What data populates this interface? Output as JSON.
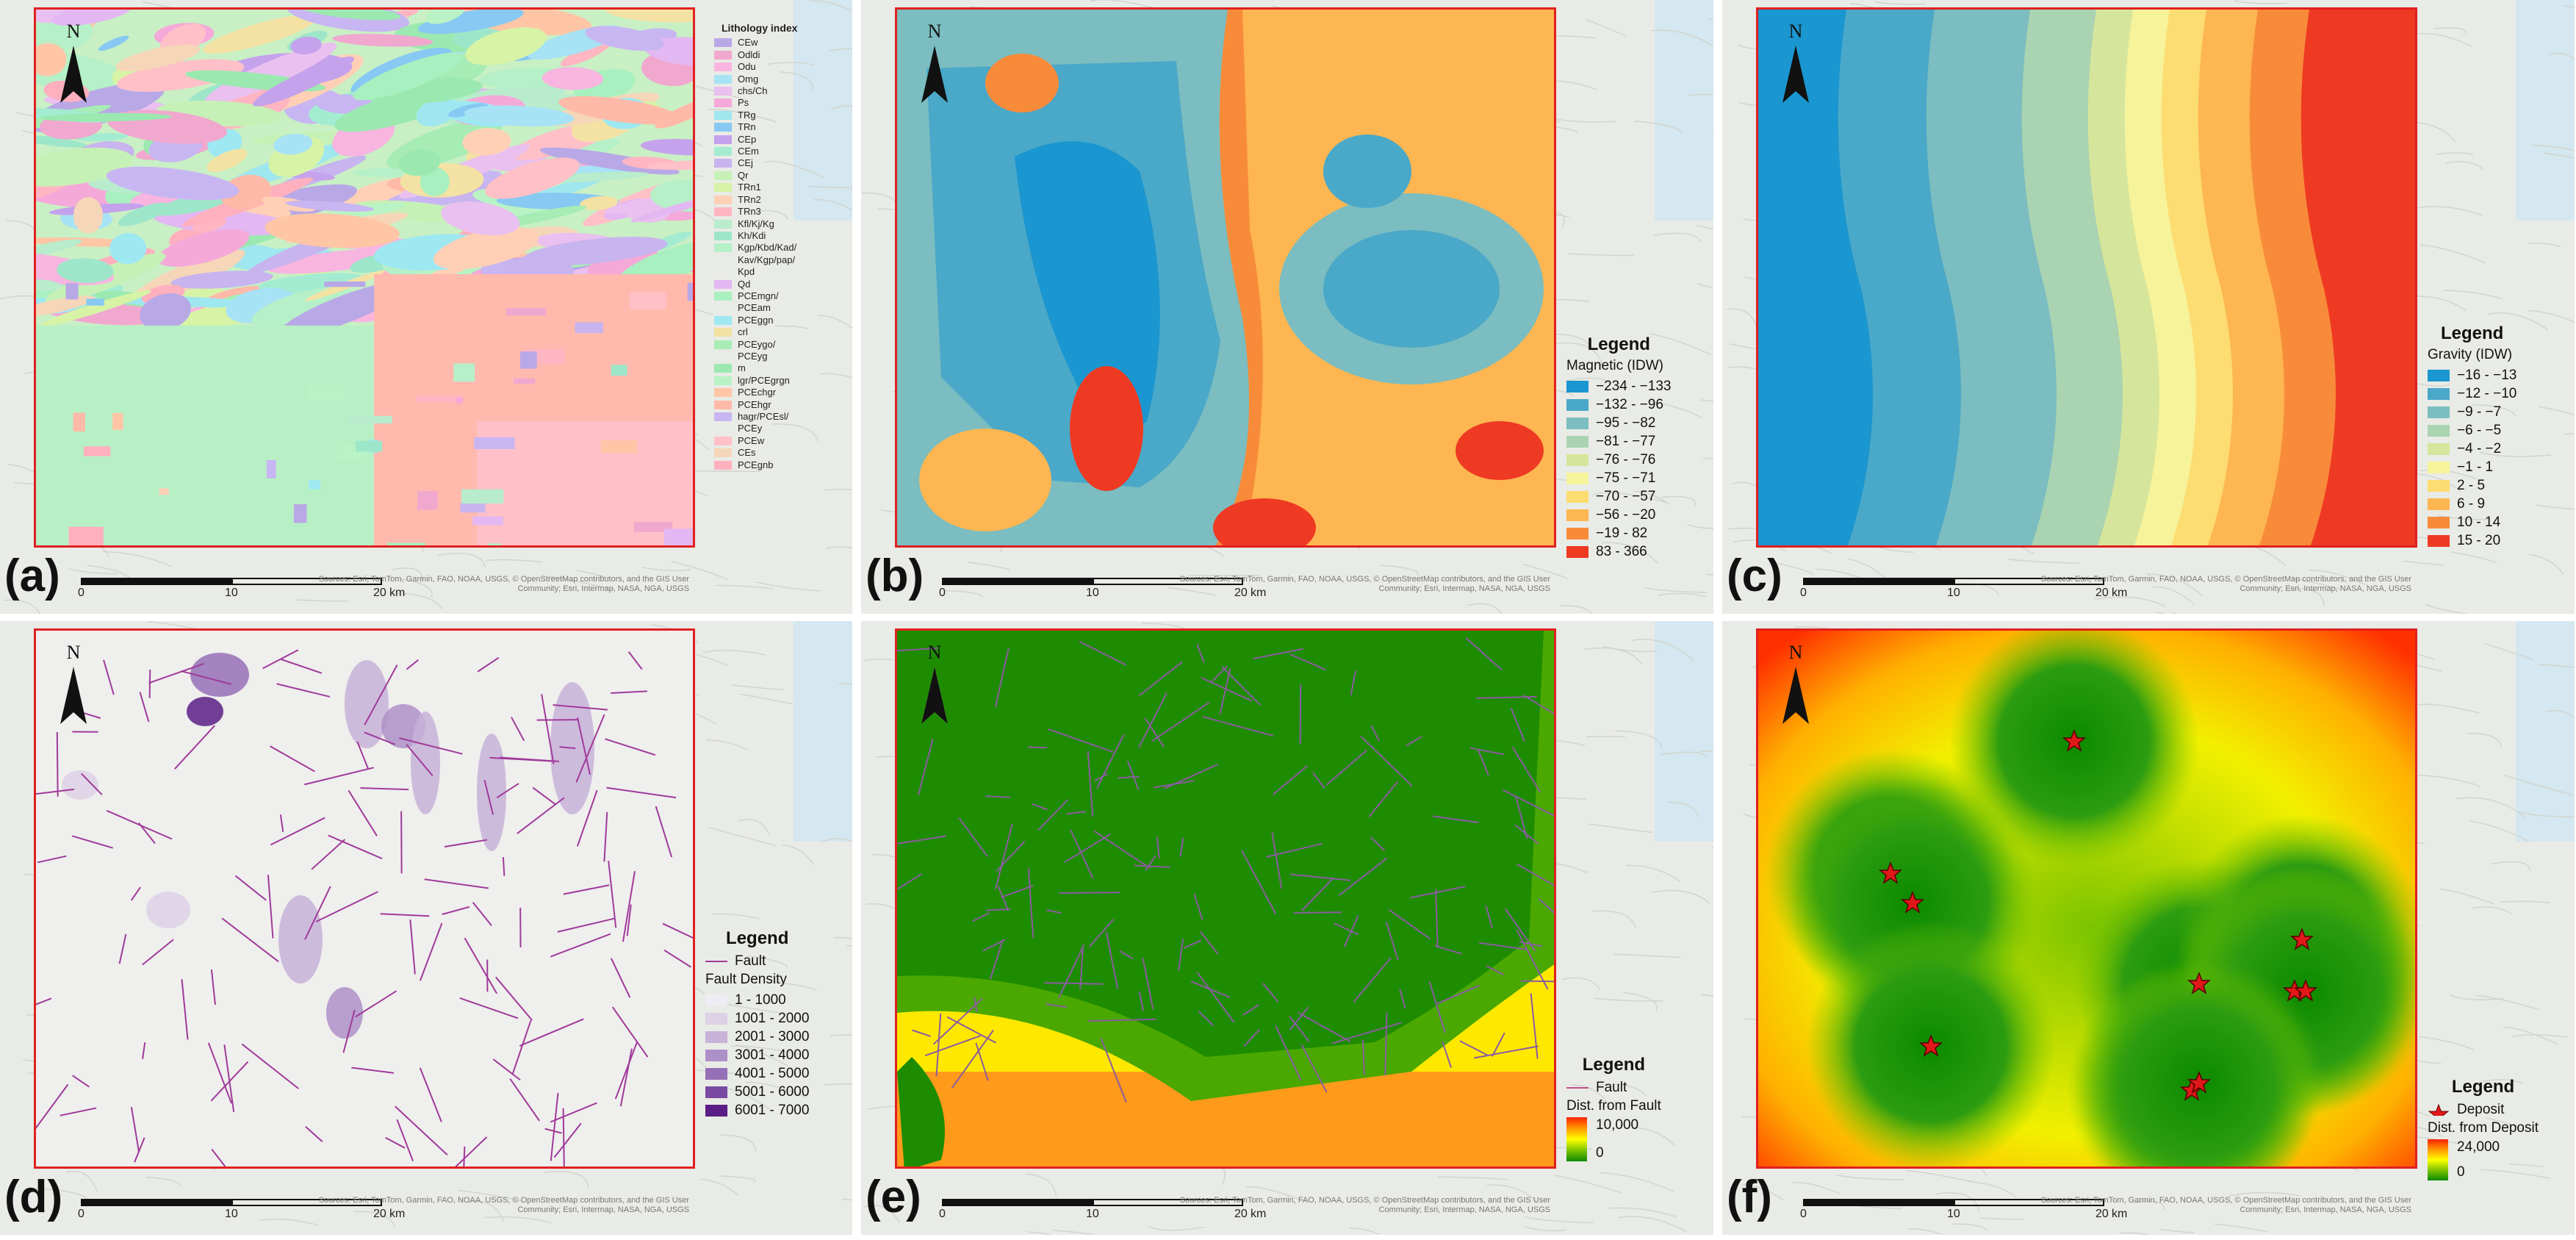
{
  "attribution": "Sources: Esri, TomTom, Garmin, FAO, NOAA, USGS, © OpenStreetMap contributors, and the GIS User Community; Esri, Intermap, NASA, NGA, USGS",
  "scalebar": {
    "ticks": [
      "0",
      "10",
      "20"
    ],
    "unit": "km"
  },
  "north_label": "N",
  "panels": [
    {
      "label": "(a)",
      "legend_title": "Lithology index",
      "classes": [
        {
          "label": "CEw",
          "color": "#b9a8e6"
        },
        {
          "label": "Odldi",
          "color": "#f0a8cf"
        },
        {
          "label": "Odu",
          "color": "#f7b5e0"
        },
        {
          "label": "Omg",
          "color": "#a8e2f5"
        },
        {
          "label": "chs/Ch",
          "color": "#e9c0ef"
        },
        {
          "label": "Ps",
          "color": "#f5a9d8"
        },
        {
          "label": "TRg",
          "color": "#9fe6ee"
        },
        {
          "label": "TRn",
          "color": "#87c9f2"
        },
        {
          "label": "CEp",
          "color": "#c5a2ec"
        },
        {
          "label": "CEm",
          "color": "#a3ecd2"
        },
        {
          "label": "CEj",
          "color": "#c8b4ee"
        },
        {
          "label": "Qr",
          "color": "#c6f1b6"
        },
        {
          "label": "TRn1",
          "color": "#d7f3a6"
        },
        {
          "label": "TRn2",
          "color": "#ffd0b6"
        },
        {
          "label": "TRn3",
          "color": "#ffb6c2"
        },
        {
          "label": "Kfl/Kj/Kg",
          "color": "#b8eccc"
        },
        {
          "label": "Kh/Kdi",
          "color": "#9ee6c9"
        },
        {
          "label": "Kgp/Kbd/Kad/\nKav/Kgp/pap/\nKpd",
          "color": "#b6f0c8"
        },
        {
          "label": "Qd",
          "color": "#e3b8f2"
        },
        {
          "label": "PCEmgn/\nPCEam",
          "color": "#a8f0c0"
        },
        {
          "label": "PCEggn",
          "color": "#9ee8f2"
        },
        {
          "label": "crl",
          "color": "#f3e2a4"
        },
        {
          "label": "PCEygo/\nPCEyg",
          "color": "#a6ecb4"
        },
        {
          "label": "m",
          "color": "#9be9b0"
        },
        {
          "label": "lgr/PCEgrgn",
          "color": "#b9f3c5"
        },
        {
          "label": "PCEchgr",
          "color": "#ffc6a6"
        },
        {
          "label": "PCEhgr",
          "color": "#ffb9a8"
        },
        {
          "label": "hagr/PCEsl/\nPCEy",
          "color": "#c8b6f2"
        },
        {
          "label": "PCEw",
          "color": "#ffc0c8"
        },
        {
          "label": "CEs",
          "color": "#f5d6b8"
        },
        {
          "label": "PCEgnb",
          "color": "#ffb0be"
        }
      ]
    },
    {
      "label": "(b)",
      "legend_title": "Legend",
      "layer_title": "Magnetic (IDW)",
      "classes": [
        {
          "label": "−234 - −133",
          "color": "#1a96d0"
        },
        {
          "label": "−132 - −96",
          "color": "#4aa8c8"
        },
        {
          "label": "−95 - −82",
          "color": "#7bbdc0"
        },
        {
          "label": "−81 - −77",
          "color": "#a9d3b1"
        },
        {
          "label": "−76 - −76",
          "color": "#d6e59c"
        },
        {
          "label": "−75 - −71",
          "color": "#f6f39a"
        },
        {
          "label": "−70 - −57",
          "color": "#fddc72"
        },
        {
          "label": "−56 - −20",
          "color": "#fdb651"
        },
        {
          "label": "−19 - 82",
          "color": "#f88b3a"
        },
        {
          "label": "83 - 366",
          "color": "#ee3a23"
        }
      ]
    },
    {
      "label": "(c)",
      "legend_title": "Legend",
      "layer_title": "Gravity (IDW)",
      "classes": [
        {
          "label": "−16 - −13",
          "color": "#1a96d0"
        },
        {
          "label": "−12 - −10",
          "color": "#4aa8c8"
        },
        {
          "label": "−9 - −7",
          "color": "#7bbdc0"
        },
        {
          "label": "−6 - −5",
          "color": "#a9d3b1"
        },
        {
          "label": "−4 - −2",
          "color": "#d6e59c"
        },
        {
          "label": "−1 - 1",
          "color": "#f6f39a"
        },
        {
          "label": "2 - 5",
          "color": "#fddc72"
        },
        {
          "label": "6 - 9",
          "color": "#fdb651"
        },
        {
          "label": "10 - 14",
          "color": "#f88b3a"
        },
        {
          "label": "15 - 20",
          "color": "#ee3a23"
        }
      ]
    },
    {
      "label": "(d)",
      "legend_title": "Legend",
      "fault_label": "Fault",
      "layer_title": "Fault Density",
      "classes": [
        {
          "label": "1 - 1000",
          "color": "#f0ecf3"
        },
        {
          "label": "1001 - 2000",
          "color": "#ddd1e6"
        },
        {
          "label": "2001 - 3000",
          "color": "#c7b2d8"
        },
        {
          "label": "3001 - 4000",
          "color": "#ae90c8"
        },
        {
          "label": "4001 - 5000",
          "color": "#9670b7"
        },
        {
          "label": "5001 - 6000",
          "color": "#7a4aa2"
        },
        {
          "label": "6001 - 7000",
          "color": "#5a1e86"
        }
      ]
    },
    {
      "label": "(e)",
      "legend_title": "Legend",
      "fault_label": "Fault",
      "layer_title": "Dist. from Fault",
      "ramp_max": "10,000",
      "ramp_min": "0"
    },
    {
      "label": "(f)",
      "legend_title": "Legend",
      "deposit_label": "Deposit",
      "layer_title": "Dist. from Deposit",
      "ramp_max": "24,000",
      "ramp_min": "0"
    }
  ]
}
